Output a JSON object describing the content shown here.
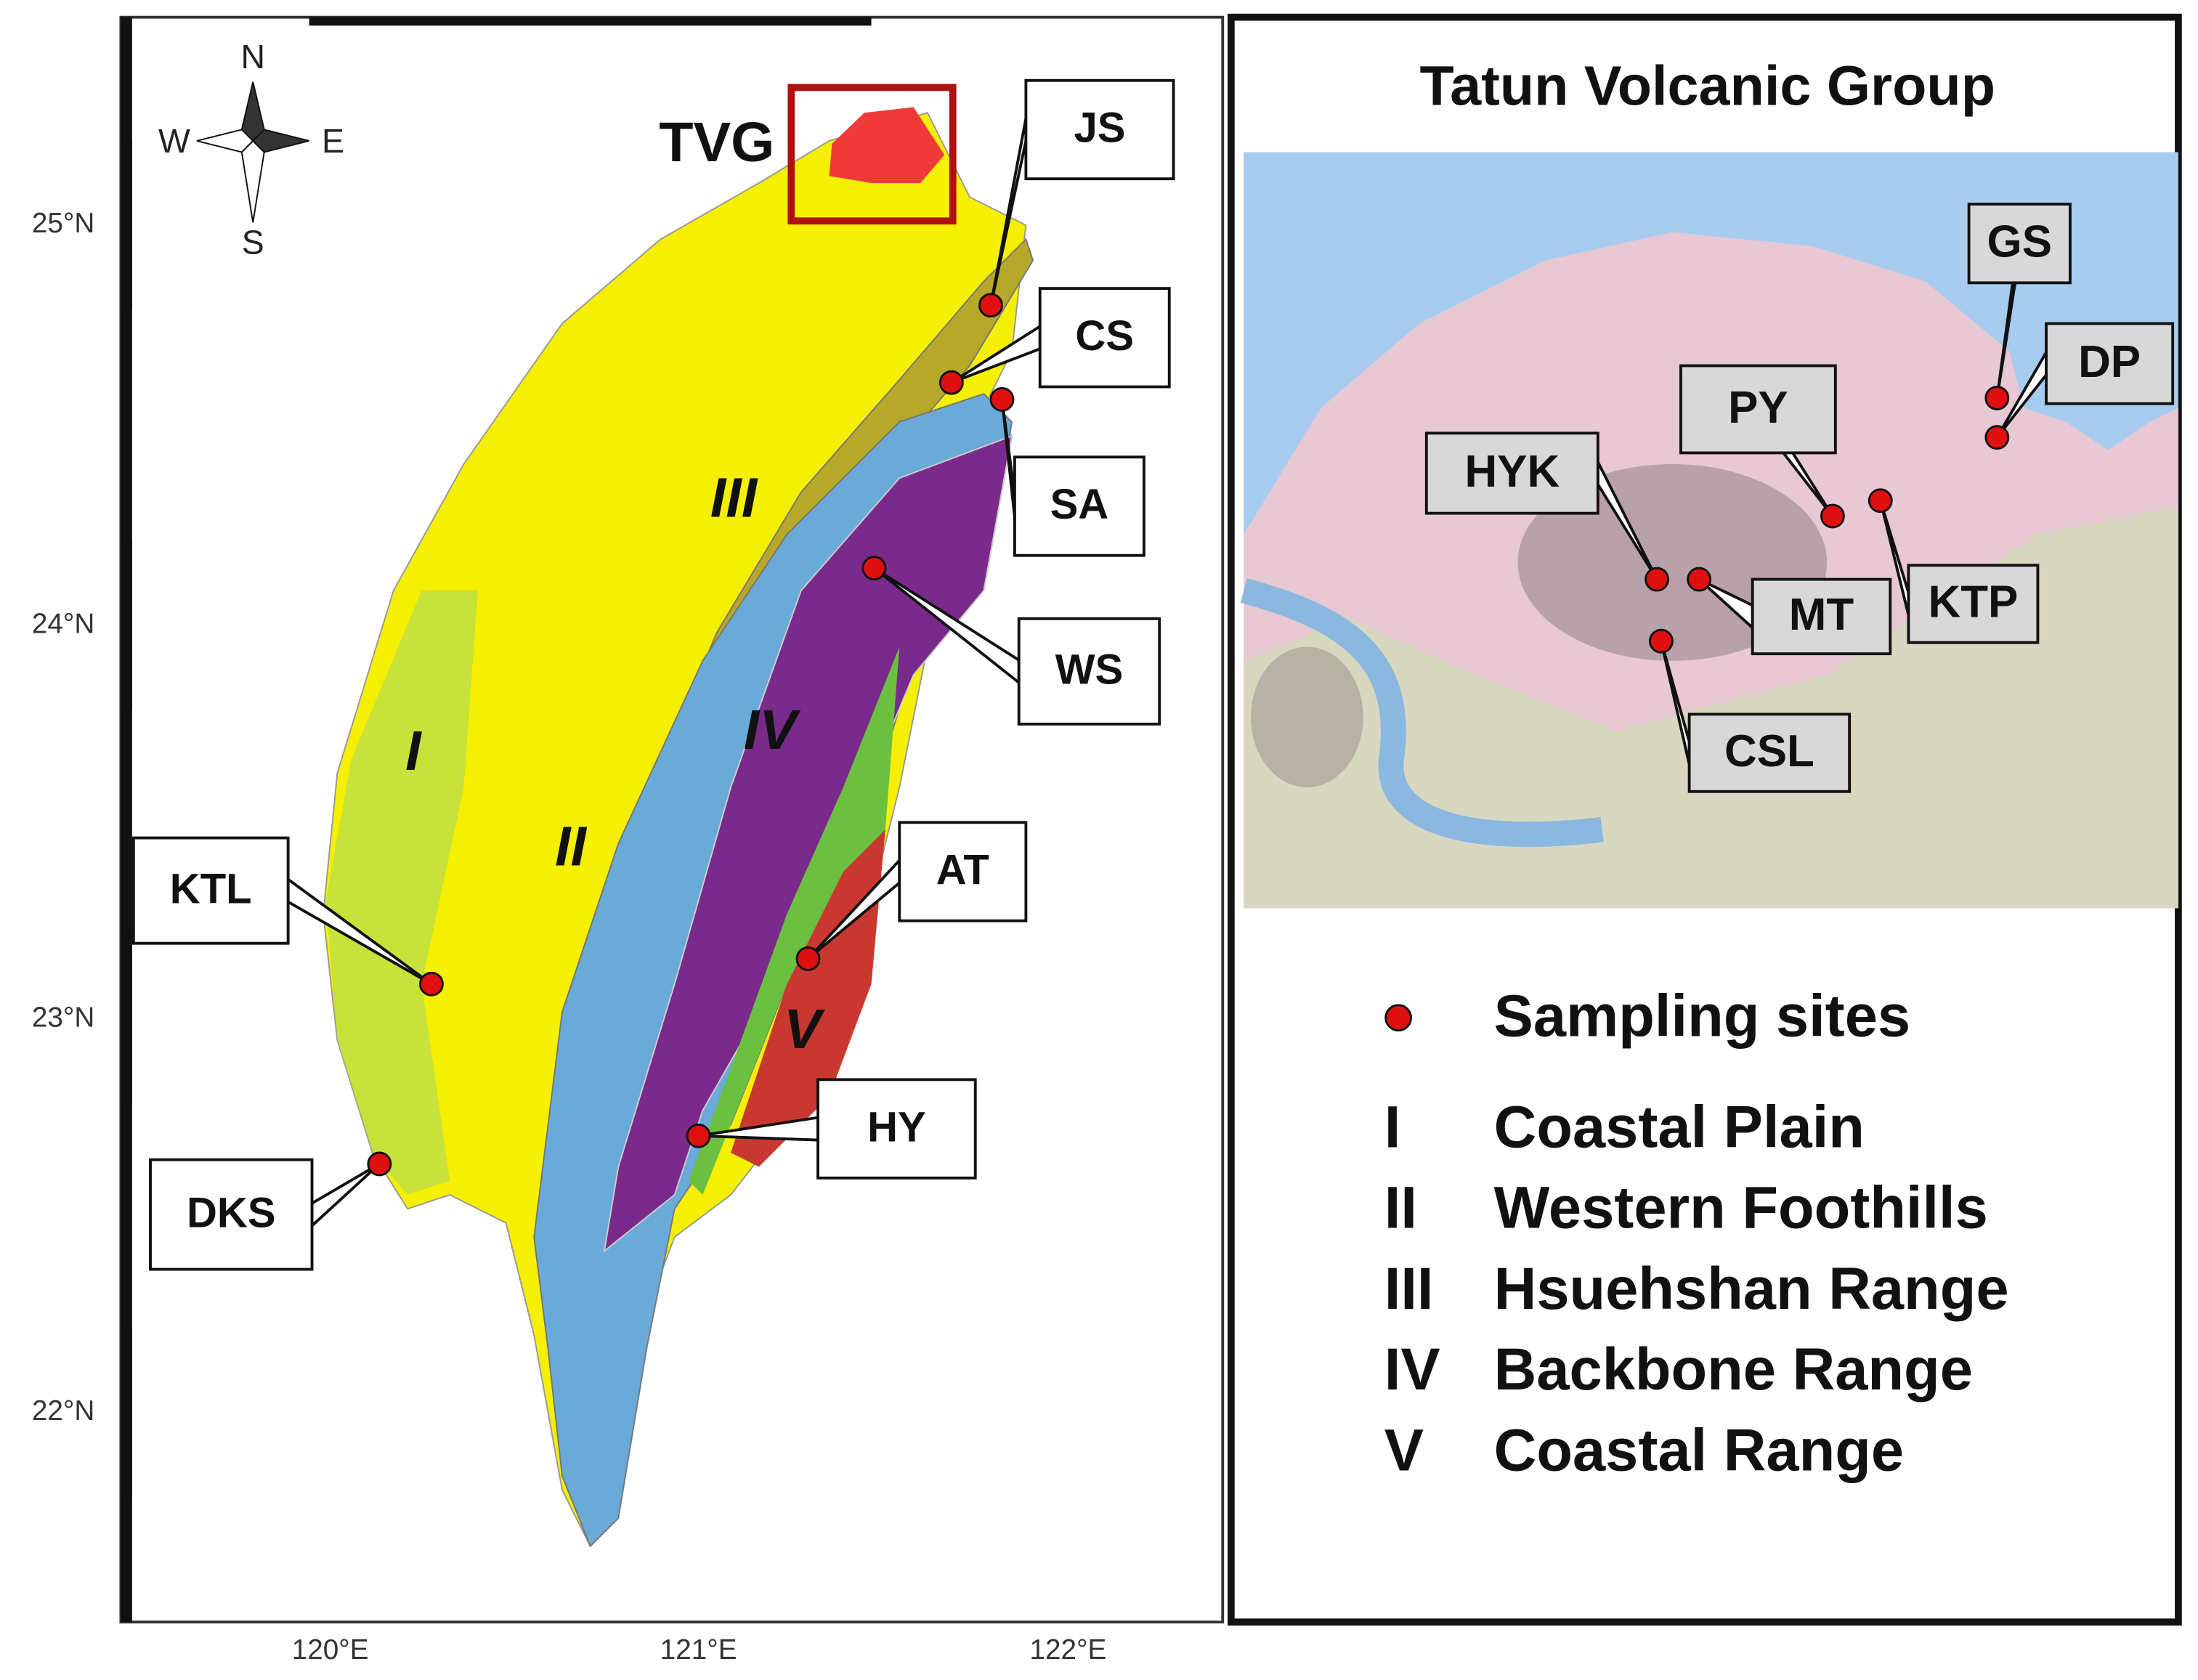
{
  "left_map": {
    "compass": [
      "N",
      "E",
      "S",
      "W"
    ],
    "latitude_labels": [
      "25°N",
      "24°N",
      "23°N",
      "22°N"
    ],
    "longitude_labels": [
      "120°E",
      "121°E",
      "122°E"
    ],
    "inset_label": "TVG",
    "zone_labels": [
      "I",
      "II",
      "III",
      "IV",
      "V"
    ],
    "sites": [
      "JS",
      "CS",
      "SA",
      "WS",
      "KTL",
      "AT",
      "DKS",
      "HY"
    ]
  },
  "right_map": {
    "title": "Tatun Volcanic Group",
    "sites": [
      "GS",
      "DP",
      "PY",
      "HYK",
      "KTP",
      "MT",
      "CSL"
    ]
  },
  "legend": {
    "marker_label": "Sampling sites",
    "items": [
      {
        "numeral": "I",
        "name": "Coastal Plain"
      },
      {
        "numeral": "II",
        "name": "Western Foothills"
      },
      {
        "numeral": "III",
        "name": "Hsuehshan Range"
      },
      {
        "numeral": "IV",
        "name": "Backbone Range"
      },
      {
        "numeral": "V",
        "name": "Coastal Range"
      }
    ]
  }
}
